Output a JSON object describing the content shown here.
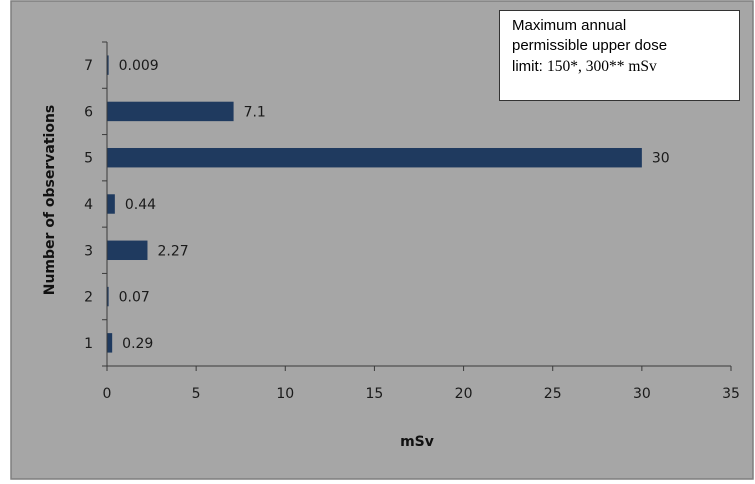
{
  "chart_data": {
    "type": "bar",
    "orientation": "horizontal",
    "categories": [
      "1",
      "2",
      "3",
      "4",
      "5",
      "6",
      "7"
    ],
    "values": [
      0.29,
      0.07,
      2.27,
      0.44,
      30,
      7.1,
      0.009
    ],
    "data_labels": [
      "0.29",
      "0.07",
      "2.27",
      "0.44",
      "30",
      "7.1",
      "0.009"
    ],
    "xlabel": "mSv",
    "ylabel": "Number of observations",
    "xlim": [
      0,
      35
    ],
    "x_ticks": [
      "0",
      "5",
      "10",
      "15",
      "20",
      "25",
      "30",
      "35"
    ],
    "grid": false,
    "legend": "none",
    "bar_color": "#1f3a5f",
    "background_color": "#a6a6a6"
  },
  "annotation": {
    "line1": "Maximum annual",
    "line2": "permissible upper dose",
    "line3_prefix": "limit: ",
    "line3_values": "150*, 300** mSv"
  }
}
